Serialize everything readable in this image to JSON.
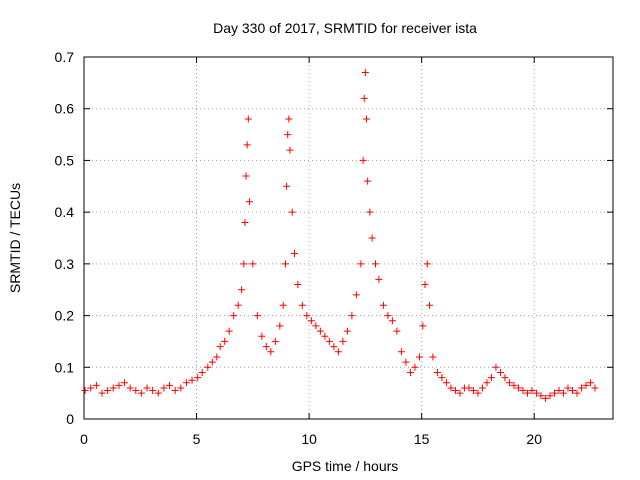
{
  "chart_data": {
    "type": "scatter",
    "title": "Day 330 of 2017, SRMTID for receiver ista",
    "xlabel": "GPS time / hours",
    "ylabel": "SRMTID / TECUs",
    "xlim": [
      0,
      23.5
    ],
    "ylim": [
      0,
      0.7
    ],
    "xticks": [
      "0",
      "5",
      "10",
      "15",
      "20"
    ],
    "yticks": [
      "0",
      "0.1",
      "0.2",
      "0.3",
      "0.4",
      "0.5",
      "0.6",
      "0.7"
    ],
    "grid": true,
    "marker": "+",
    "series": [
      {
        "name": "ista",
        "color": "#ff0000",
        "x": [
          0.05,
          0.3,
          0.55,
          0.8,
          1.05,
          1.3,
          1.55,
          1.8,
          2.05,
          2.3,
          2.55,
          2.8,
          3.05,
          3.3,
          3.55,
          3.8,
          4.05,
          4.3,
          4.55,
          4.8,
          5.05,
          5.25,
          5.5,
          5.7,
          5.9,
          6.05,
          6.25,
          6.45,
          6.65,
          6.85,
          7.0,
          7.1,
          7.15,
          7.2,
          7.25,
          7.3,
          7.35,
          7.5,
          7.7,
          7.9,
          8.1,
          8.3,
          8.5,
          8.7,
          8.85,
          8.95,
          9.0,
          9.05,
          9.1,
          9.15,
          9.25,
          9.35,
          9.5,
          9.7,
          9.9,
          10.1,
          10.3,
          10.5,
          10.7,
          10.9,
          11.1,
          11.3,
          11.5,
          11.7,
          11.9,
          12.1,
          12.3,
          12.4,
          12.45,
          12.5,
          12.55,
          12.6,
          12.7,
          12.8,
          12.95,
          13.1,
          13.3,
          13.5,
          13.7,
          13.9,
          14.1,
          14.3,
          14.5,
          14.7,
          14.9,
          15.05,
          15.15,
          15.25,
          15.35,
          15.5,
          15.7,
          15.9,
          16.1,
          16.3,
          16.5,
          16.7,
          16.9,
          17.1,
          17.3,
          17.5,
          17.7,
          17.9,
          18.1,
          18.3,
          18.5,
          18.7,
          18.9,
          19.1,
          19.3,
          19.5,
          19.7,
          19.9,
          20.1,
          20.3,
          20.5,
          20.7,
          20.9,
          21.1,
          21.3,
          21.5,
          21.7,
          21.9,
          22.1,
          22.3,
          22.5,
          22.7
        ],
        "y": [
          0.055,
          0.06,
          0.065,
          0.05,
          0.055,
          0.06,
          0.065,
          0.07,
          0.06,
          0.055,
          0.05,
          0.06,
          0.055,
          0.05,
          0.06,
          0.065,
          0.055,
          0.06,
          0.07,
          0.075,
          0.08,
          0.09,
          0.1,
          0.11,
          0.12,
          0.14,
          0.15,
          0.17,
          0.2,
          0.22,
          0.25,
          0.3,
          0.38,
          0.47,
          0.53,
          0.58,
          0.42,
          0.3,
          0.2,
          0.16,
          0.14,
          0.13,
          0.15,
          0.18,
          0.22,
          0.3,
          0.45,
          0.55,
          0.58,
          0.52,
          0.4,
          0.32,
          0.26,
          0.22,
          0.2,
          0.19,
          0.18,
          0.17,
          0.16,
          0.15,
          0.14,
          0.13,
          0.15,
          0.17,
          0.2,
          0.24,
          0.3,
          0.5,
          0.62,
          0.67,
          0.58,
          0.46,
          0.4,
          0.35,
          0.3,
          0.27,
          0.22,
          0.2,
          0.19,
          0.17,
          0.13,
          0.11,
          0.09,
          0.1,
          0.12,
          0.18,
          0.26,
          0.3,
          0.22,
          0.12,
          0.09,
          0.08,
          0.07,
          0.06,
          0.055,
          0.05,
          0.06,
          0.06,
          0.055,
          0.05,
          0.06,
          0.07,
          0.08,
          0.1,
          0.09,
          0.08,
          0.07,
          0.065,
          0.06,
          0.055,
          0.05,
          0.055,
          0.05,
          0.045,
          0.04,
          0.045,
          0.05,
          0.055,
          0.05,
          0.06,
          0.055,
          0.05,
          0.06,
          0.065,
          0.07,
          0.06
        ]
      }
    ]
  }
}
